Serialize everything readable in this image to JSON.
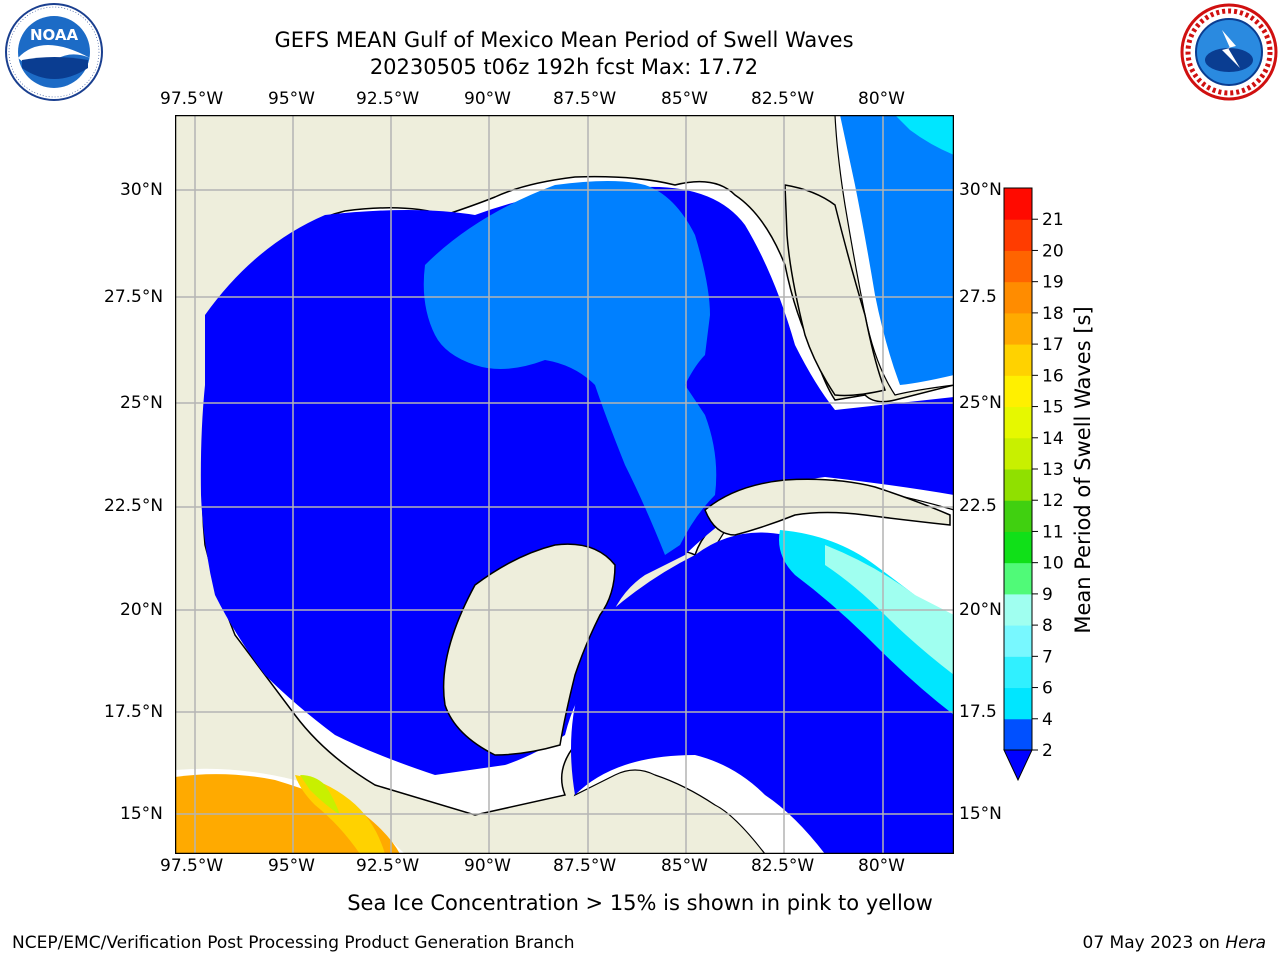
{
  "header": {
    "title_line1": "GEFS MEAN Gulf of Mexico Mean Period of Swell Waves",
    "title_line2": "20230505 t06z 192h fcst   Max: 17.72"
  },
  "logos": {
    "left": {
      "icon": "noaa-logo-icon",
      "text": "NOAA"
    },
    "right": {
      "icon": "nws-logo-icon",
      "text": "NATIONAL WEATHER SERVICE"
    }
  },
  "map": {
    "lon_labels": [
      "97.5°W",
      "95°W",
      "92.5°W",
      "90°W",
      "87.5°W",
      "85°W",
      "82.5°W",
      "80°W"
    ],
    "lat_labels_left": [
      "30°N",
      "27.5°N",
      "25°N",
      "22.5°N",
      "20°N",
      "17.5°N",
      "15°N"
    ],
    "lat_labels_right": [
      "30°N",
      "27.5",
      "25°N",
      "22.5",
      "20°N",
      "17.5",
      "15°N"
    ],
    "land_color": "#eeeedc",
    "grid_color": "#b4b4b4"
  },
  "colorbar": {
    "label": "Mean Period of Swell Waves [s]",
    "ticks": [
      "2",
      "4",
      "6",
      "7",
      "8",
      "9",
      "10",
      "11",
      "12",
      "13",
      "14",
      "15",
      "16",
      "17",
      "18",
      "19",
      "20",
      "21"
    ],
    "colors": [
      "#0050ff",
      "#00e6ff",
      "#30f0ff",
      "#78f8ff",
      "#a0fff0",
      "#50fa78",
      "#10e018",
      "#40d010",
      "#90e000",
      "#c8f000",
      "#e6f800",
      "#fff000",
      "#ffd200",
      "#ffaa00",
      "#ff8c00",
      "#ff6400",
      "#ff3c00",
      "#ff0a00"
    ],
    "under_color": "#0000ff",
    "vmin": 2,
    "vmax": 21
  },
  "annotation": "Sea Ice Concentration > 15% is shown in pink to yellow",
  "footer": {
    "left": "NCEP/EMC/Verification Post Processing Product Generation Branch",
    "right_date": "07 May 2023 on",
    "right_host": "Hera"
  }
}
